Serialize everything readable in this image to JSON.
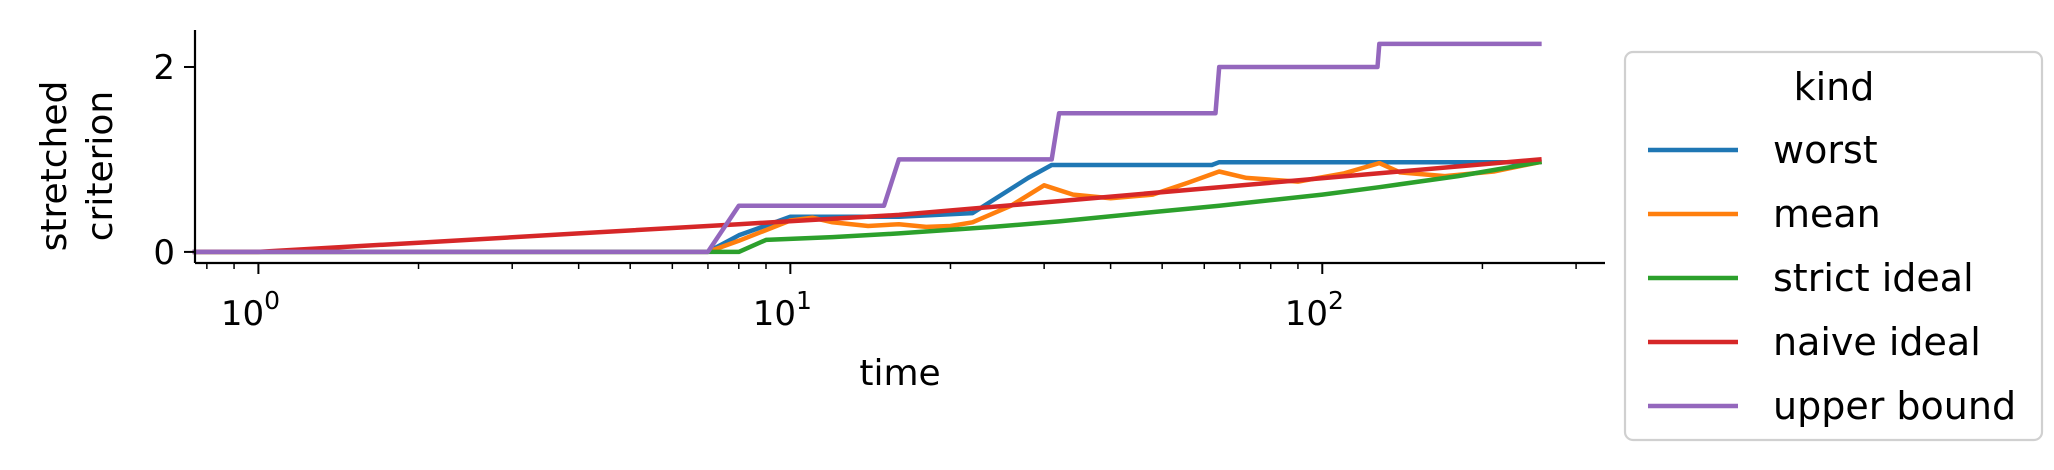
{
  "chart_data": {
    "type": "line",
    "xlabel": "time",
    "ylabel": [
      "stretched",
      "criterion"
    ],
    "x_scale": "log",
    "xlim": [
      0.76,
      340
    ],
    "ylim": [
      -0.12,
      2.4
    ],
    "x_ticks": [
      {
        "value": 1,
        "base": "10",
        "exp": "0"
      },
      {
        "value": 10,
        "base": "10",
        "exp": "1"
      },
      {
        "value": 100,
        "base": "10",
        "exp": "2"
      }
    ],
    "y_ticks": [
      {
        "value": 0,
        "label": "0"
      },
      {
        "value": 2,
        "label": "2"
      }
    ],
    "grid": false,
    "legend": {
      "title": "kind",
      "placement": "outside-right"
    },
    "series": [
      {
        "name": "worst",
        "color": "#1f77b4",
        "points": [
          [
            0.76,
            0
          ],
          [
            1,
            0
          ],
          [
            7,
            0
          ],
          [
            8,
            0.18
          ],
          [
            10,
            0.38
          ],
          [
            16,
            0.38
          ],
          [
            22,
            0.42
          ],
          [
            28,
            0.8
          ],
          [
            31,
            0.94
          ],
          [
            62,
            0.94
          ],
          [
            64,
            0.97
          ],
          [
            256,
            0.97
          ]
        ]
      },
      {
        "name": "mean",
        "color": "#ff7f0e",
        "points": [
          [
            0.76,
            0
          ],
          [
            1,
            0
          ],
          [
            7,
            0
          ],
          [
            8,
            0.12
          ],
          [
            10,
            0.34
          ],
          [
            11,
            0.37
          ],
          [
            12,
            0.32
          ],
          [
            14,
            0.28
          ],
          [
            16,
            0.3
          ],
          [
            18,
            0.27
          ],
          [
            20,
            0.28
          ],
          [
            22,
            0.32
          ],
          [
            26,
            0.5
          ],
          [
            30,
            0.72
          ],
          [
            34,
            0.62
          ],
          [
            40,
            0.58
          ],
          [
            48,
            0.62
          ],
          [
            56,
            0.75
          ],
          [
            64,
            0.87
          ],
          [
            72,
            0.8
          ],
          [
            90,
            0.76
          ],
          [
            110,
            0.85
          ],
          [
            128,
            0.96
          ],
          [
            140,
            0.86
          ],
          [
            170,
            0.82
          ],
          [
            210,
            0.87
          ],
          [
            256,
            0.97
          ]
        ]
      },
      {
        "name": "strict ideal",
        "color": "#2ca02c",
        "points": [
          [
            0.76,
            0
          ],
          [
            1,
            0
          ],
          [
            7,
            0
          ],
          [
            8,
            0
          ],
          [
            9,
            0.13
          ],
          [
            12,
            0.16
          ],
          [
            16,
            0.2
          ],
          [
            24,
            0.27
          ],
          [
            32,
            0.33
          ],
          [
            48,
            0.43
          ],
          [
            64,
            0.5
          ],
          [
            100,
            0.62
          ],
          [
            128,
            0.7
          ],
          [
            180,
            0.82
          ],
          [
            256,
            0.97
          ]
        ]
      },
      {
        "name": "naive ideal",
        "color": "#d62728",
        "points": [
          [
            0.76,
            0
          ],
          [
            1,
            0
          ],
          [
            2,
            0.1
          ],
          [
            4,
            0.2
          ],
          [
            8,
            0.3
          ],
          [
            16,
            0.4
          ],
          [
            32,
            0.55
          ],
          [
            64,
            0.7
          ],
          [
            128,
            0.85
          ],
          [
            256,
            1.0
          ]
        ]
      },
      {
        "name": "upper bound",
        "color": "#9467bd",
        "points": [
          [
            0.76,
            0
          ],
          [
            1,
            0
          ],
          [
            7,
            0
          ],
          [
            8,
            0.5
          ],
          [
            15,
            0.5
          ],
          [
            16,
            1.0
          ],
          [
            31,
            1.0
          ],
          [
            32,
            1.5
          ],
          [
            63,
            1.5
          ],
          [
            64,
            2.0
          ],
          [
            127,
            2.0
          ],
          [
            128,
            2.25
          ],
          [
            256,
            2.25
          ]
        ]
      }
    ]
  }
}
